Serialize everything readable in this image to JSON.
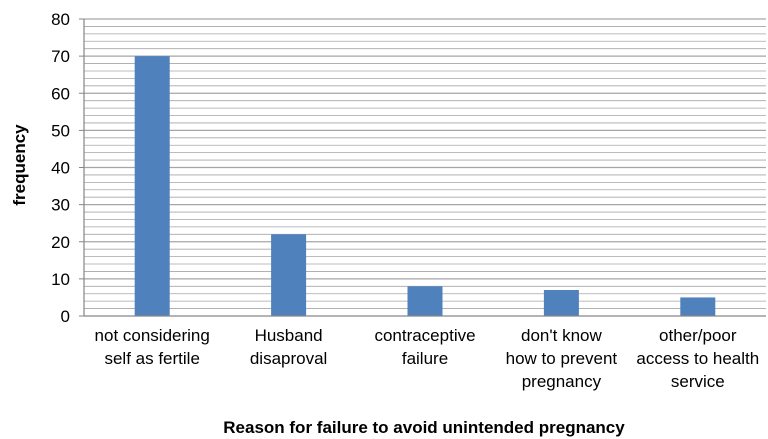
{
  "chart_data": {
    "type": "bar",
    "title": "",
    "xlabel": "Reason  for failure to  avoid unintended pregnancy",
    "ylabel": "frequency",
    "ylim": [
      0,
      80
    ],
    "yticks": [
      0,
      10,
      20,
      30,
      40,
      50,
      60,
      70,
      80
    ],
    "grid": true,
    "categories": [
      [
        "not considering",
        "self as fertile"
      ],
      [
        "Husband",
        "disaproval"
      ],
      [
        "contraceptive",
        "failure"
      ],
      [
        "don't know",
        "how to prevent",
        "pregnancy"
      ],
      [
        "other/poor",
        "access to health",
        "service"
      ]
    ],
    "values": [
      70,
      22,
      8,
      7,
      5
    ],
    "colors": {
      "bar": "#4f81bd",
      "grid": "#a6a6a6",
      "axis": "#868686"
    }
  }
}
